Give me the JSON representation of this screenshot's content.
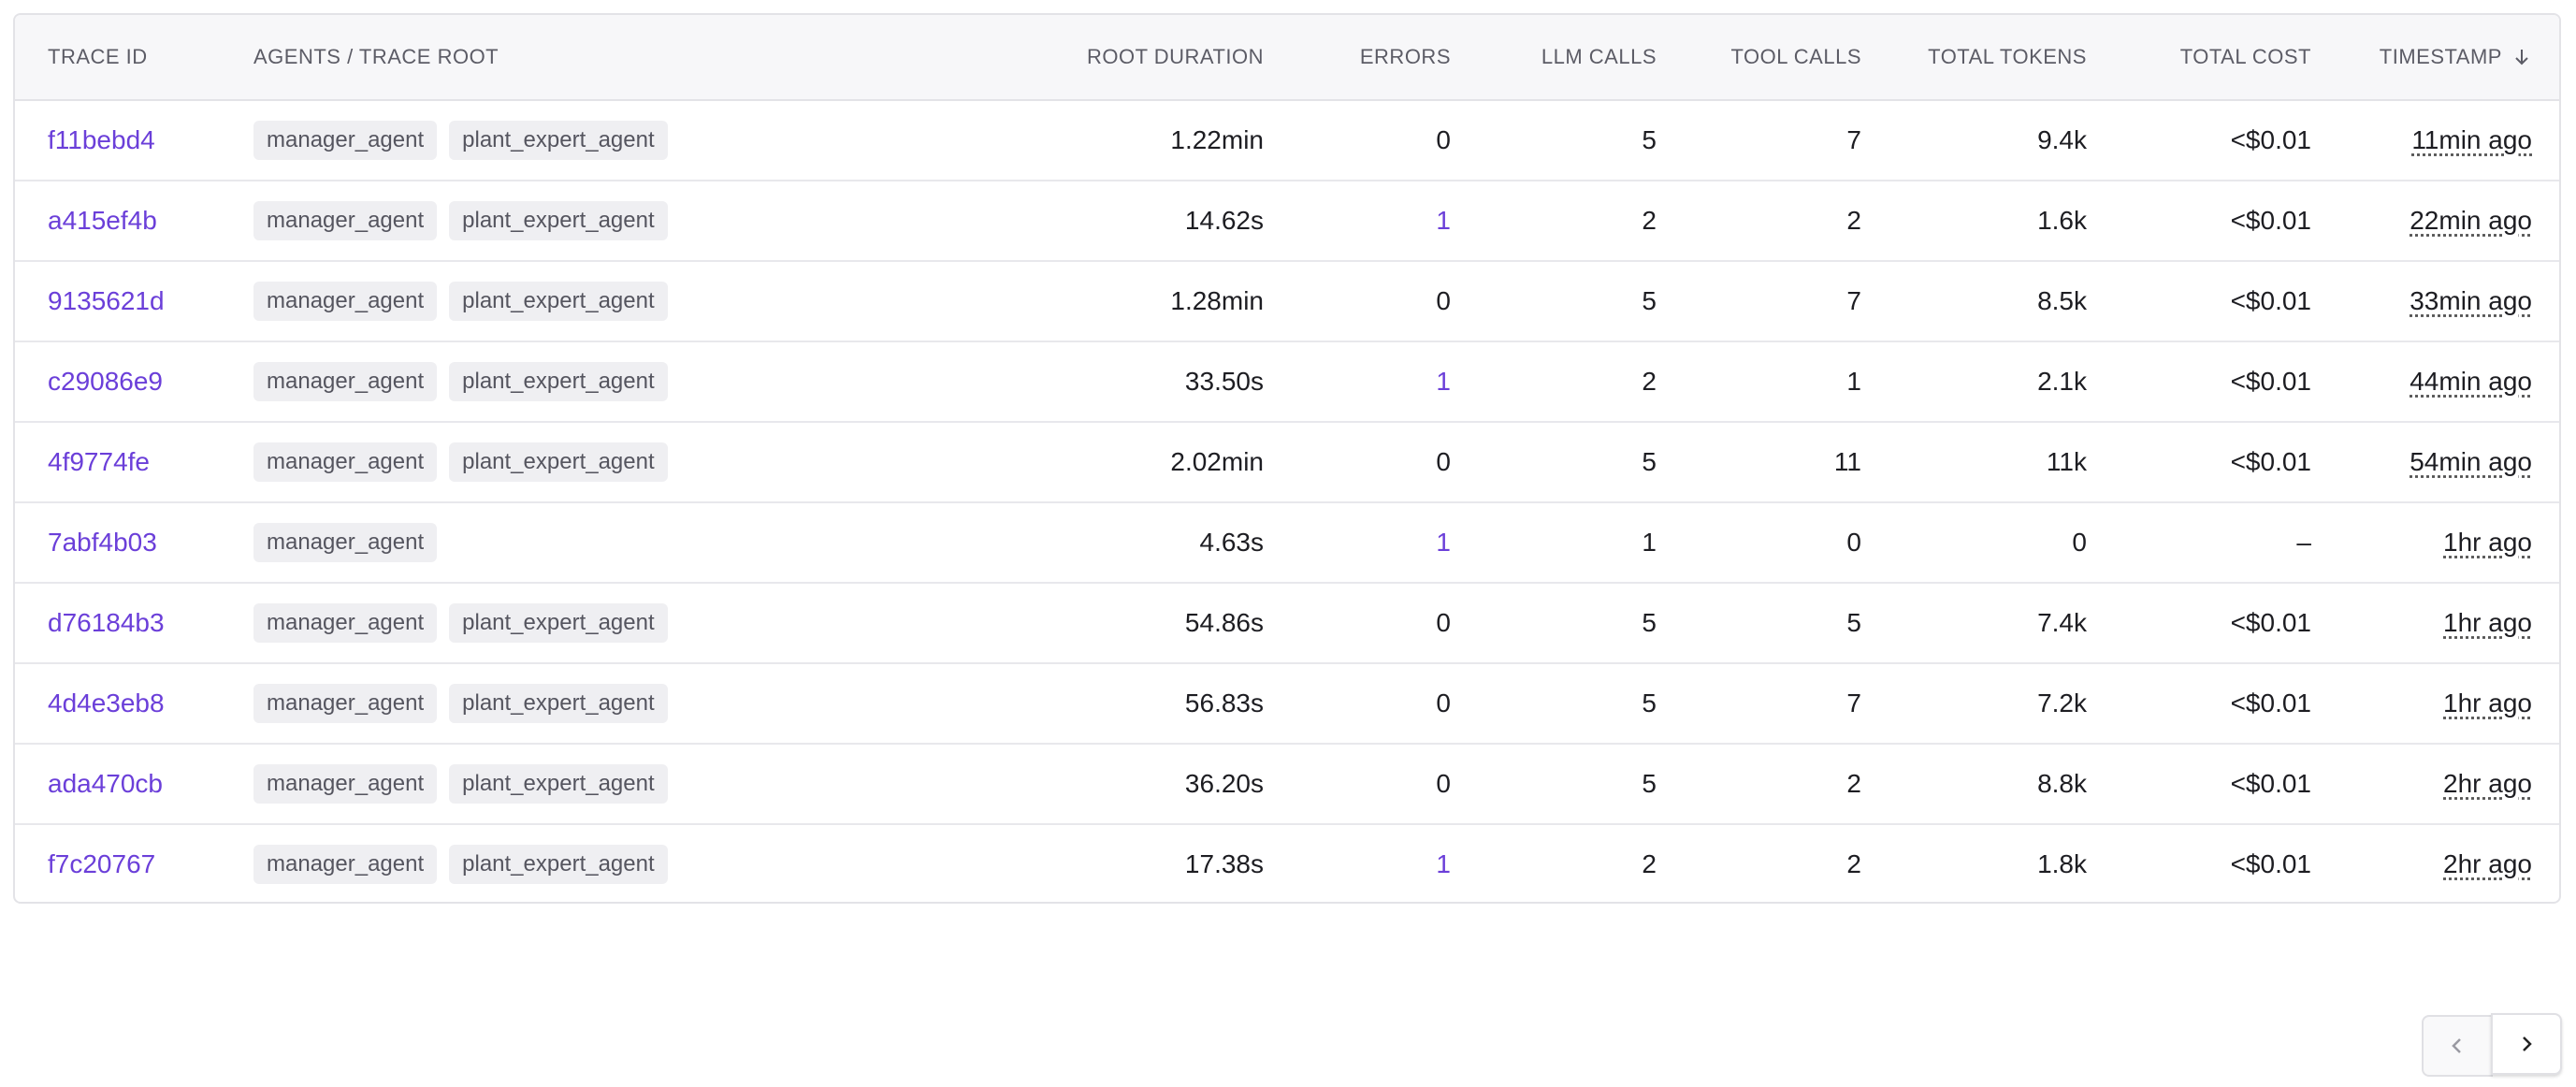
{
  "table": {
    "columns": [
      "TRACE ID",
      "AGENTS / TRACE ROOT",
      "ROOT DURATION",
      "ERRORS",
      "LLM CALLS",
      "TOOL CALLS",
      "TOTAL TOKENS",
      "TOTAL COST",
      "TIMESTAMP"
    ],
    "rows": [
      {
        "trace_id": "f11bebd4",
        "agents": [
          "manager_agent",
          "plant_expert_agent"
        ],
        "root_duration": "1.22min",
        "errors": 0,
        "llm_calls": 5,
        "tool_calls": 7,
        "total_tokens": "9.4k",
        "total_cost": "<$0.01",
        "timestamp": "11min ago"
      },
      {
        "trace_id": "a415ef4b",
        "agents": [
          "manager_agent",
          "plant_expert_agent"
        ],
        "root_duration": "14.62s",
        "errors": 1,
        "llm_calls": 2,
        "tool_calls": 2,
        "total_tokens": "1.6k",
        "total_cost": "<$0.01",
        "timestamp": "22min ago"
      },
      {
        "trace_id": "9135621d",
        "agents": [
          "manager_agent",
          "plant_expert_agent"
        ],
        "root_duration": "1.28min",
        "errors": 0,
        "llm_calls": 5,
        "tool_calls": 7,
        "total_tokens": "8.5k",
        "total_cost": "<$0.01",
        "timestamp": "33min ago"
      },
      {
        "trace_id": "c29086e9",
        "agents": [
          "manager_agent",
          "plant_expert_agent"
        ],
        "root_duration": "33.50s",
        "errors": 1,
        "llm_calls": 2,
        "tool_calls": 1,
        "total_tokens": "2.1k",
        "total_cost": "<$0.01",
        "timestamp": "44min ago"
      },
      {
        "trace_id": "4f9774fe",
        "agents": [
          "manager_agent",
          "plant_expert_agent"
        ],
        "root_duration": "2.02min",
        "errors": 0,
        "llm_calls": 5,
        "tool_calls": 11,
        "total_tokens": "11k",
        "total_cost": "<$0.01",
        "timestamp": "54min ago"
      },
      {
        "trace_id": "7abf4b03",
        "agents": [
          "manager_agent"
        ],
        "root_duration": "4.63s",
        "errors": 1,
        "llm_calls": 1,
        "tool_calls": 0,
        "total_tokens": "0",
        "total_cost": "–",
        "timestamp": "1hr ago"
      },
      {
        "trace_id": "d76184b3",
        "agents": [
          "manager_agent",
          "plant_expert_agent"
        ],
        "root_duration": "54.86s",
        "errors": 0,
        "llm_calls": 5,
        "tool_calls": 5,
        "total_tokens": "7.4k",
        "total_cost": "<$0.01",
        "timestamp": "1hr ago"
      },
      {
        "trace_id": "4d4e3eb8",
        "agents": [
          "manager_agent",
          "plant_expert_agent"
        ],
        "root_duration": "56.83s",
        "errors": 0,
        "llm_calls": 5,
        "tool_calls": 7,
        "total_tokens": "7.2k",
        "total_cost": "<$0.01",
        "timestamp": "1hr ago"
      },
      {
        "trace_id": "ada470cb",
        "agents": [
          "manager_agent",
          "plant_expert_agent"
        ],
        "root_duration": "36.20s",
        "errors": 0,
        "llm_calls": 5,
        "tool_calls": 2,
        "total_tokens": "8.8k",
        "total_cost": "<$0.01",
        "timestamp": "2hr ago"
      },
      {
        "trace_id": "f7c20767",
        "agents": [
          "manager_agent",
          "plant_expert_agent"
        ],
        "root_duration": "17.38s",
        "errors": 1,
        "llm_calls": 2,
        "tool_calls": 2,
        "total_tokens": "1.8k",
        "total_cost": "<$0.01",
        "timestamp": "2hr ago"
      }
    ]
  }
}
